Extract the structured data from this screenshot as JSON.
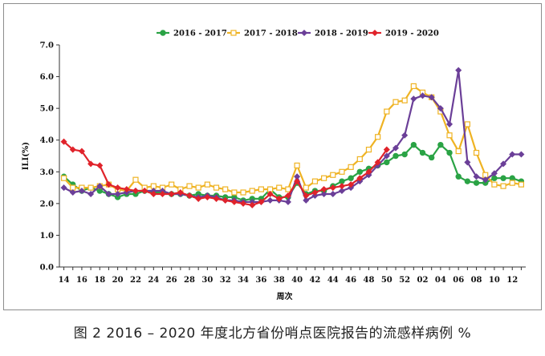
{
  "caption": "图 2 2016 – 2020 年度北方省份哨点医院报告的流感样病例 %",
  "chart_data": {
    "type": "line",
    "title": "",
    "xlabel": "周次",
    "ylabel": "ILI(%)",
    "ylim": [
      0,
      7
    ],
    "yticks": [
      "0.0",
      "1.0",
      "2.0",
      "3.0",
      "4.0",
      "5.0",
      "6.0",
      "7.0"
    ],
    "grid": false,
    "legend_position": "top-center",
    "x_tick_labels": [
      "14",
      "16",
      "18",
      "20",
      "22",
      "24",
      "26",
      "28",
      "30",
      "32",
      "34",
      "36",
      "38",
      "40",
      "42",
      "44",
      "46",
      "48",
      "50",
      "52",
      "02",
      "04",
      "06",
      "08",
      "10",
      "12"
    ],
    "categories": [
      "14",
      "15",
      "16",
      "17",
      "18",
      "19",
      "20",
      "21",
      "22",
      "23",
      "24",
      "25",
      "26",
      "27",
      "28",
      "29",
      "30",
      "31",
      "32",
      "33",
      "34",
      "35",
      "36",
      "37",
      "38",
      "39",
      "40",
      "41",
      "42",
      "43",
      "44",
      "45",
      "46",
      "47",
      "48",
      "49",
      "50",
      "51",
      "52",
      "01",
      "02",
      "03",
      "04",
      "05",
      "06",
      "07",
      "08",
      "09",
      "10",
      "11",
      "12",
      "13"
    ],
    "series": [
      {
        "name": "2016 - 2017",
        "color": "#2aa345",
        "marker": "circle",
        "values": [
          2.85,
          2.6,
          2.4,
          2.5,
          2.4,
          2.3,
          2.2,
          2.3,
          2.3,
          2.4,
          2.35,
          2.35,
          2.3,
          2.3,
          2.25,
          2.3,
          2.25,
          2.25,
          2.2,
          2.2,
          2.1,
          2.15,
          2.15,
          2.45,
          2.2,
          2.2,
          2.65,
          2.3,
          2.4,
          2.4,
          2.55,
          2.7,
          2.8,
          3.0,
          3.1,
          3.2,
          3.3,
          3.5,
          3.55,
          3.85,
          3.6,
          3.45,
          3.85,
          3.6,
          2.85,
          2.7,
          2.65,
          2.65,
          2.8,
          2.8,
          2.8,
          2.7
        ]
      },
      {
        "name": "2017 - 2018",
        "color": "#efb323",
        "marker": "square",
        "values": [
          2.8,
          2.5,
          2.5,
          2.5,
          2.55,
          2.6,
          2.45,
          2.4,
          2.75,
          2.5,
          2.55,
          2.5,
          2.6,
          2.45,
          2.55,
          2.5,
          2.6,
          2.5,
          2.45,
          2.35,
          2.35,
          2.4,
          2.45,
          2.45,
          2.5,
          2.45,
          3.2,
          2.5,
          2.7,
          2.8,
          2.9,
          3.0,
          3.15,
          3.4,
          3.7,
          4.1,
          4.9,
          5.2,
          5.25,
          5.7,
          5.5,
          5.35,
          4.9,
          4.15,
          3.65,
          4.5,
          3.6,
          2.9,
          2.6,
          2.55,
          2.65,
          2.6
        ]
      },
      {
        "name": "2018 - 2019",
        "color": "#6b3f98",
        "marker": "diamond",
        "values": [
          2.5,
          2.35,
          2.4,
          2.3,
          2.55,
          2.3,
          2.3,
          2.35,
          2.4,
          2.4,
          2.4,
          2.4,
          2.3,
          2.3,
          2.25,
          2.2,
          2.25,
          2.2,
          2.1,
          2.1,
          2.05,
          2.05,
          2.05,
          2.1,
          2.1,
          2.05,
          2.85,
          2.1,
          2.25,
          2.3,
          2.3,
          2.4,
          2.5,
          2.7,
          2.9,
          3.2,
          3.5,
          3.75,
          4.15,
          5.3,
          5.4,
          5.35,
          5.0,
          4.5,
          6.2,
          3.3,
          2.85,
          2.75,
          2.95,
          3.25,
          3.55,
          3.55
        ]
      },
      {
        "name": "2019 - 2020",
        "color": "#e0232b",
        "marker": "diamond",
        "values": [
          3.95,
          3.7,
          3.65,
          3.25,
          3.2,
          2.6,
          2.5,
          2.45,
          2.4,
          2.4,
          2.3,
          2.3,
          2.3,
          2.35,
          2.25,
          2.15,
          2.2,
          2.15,
          2.1,
          2.05,
          2.0,
          1.95,
          2.05,
          2.3,
          2.15,
          2.25,
          2.7,
          2.25,
          2.35,
          2.45,
          2.5,
          2.55,
          2.6,
          2.8,
          3.0,
          3.3,
          3.7,
          null,
          null,
          null,
          null,
          null,
          null,
          null,
          null,
          null,
          null,
          null,
          null,
          null,
          null,
          null
        ]
      }
    ]
  }
}
